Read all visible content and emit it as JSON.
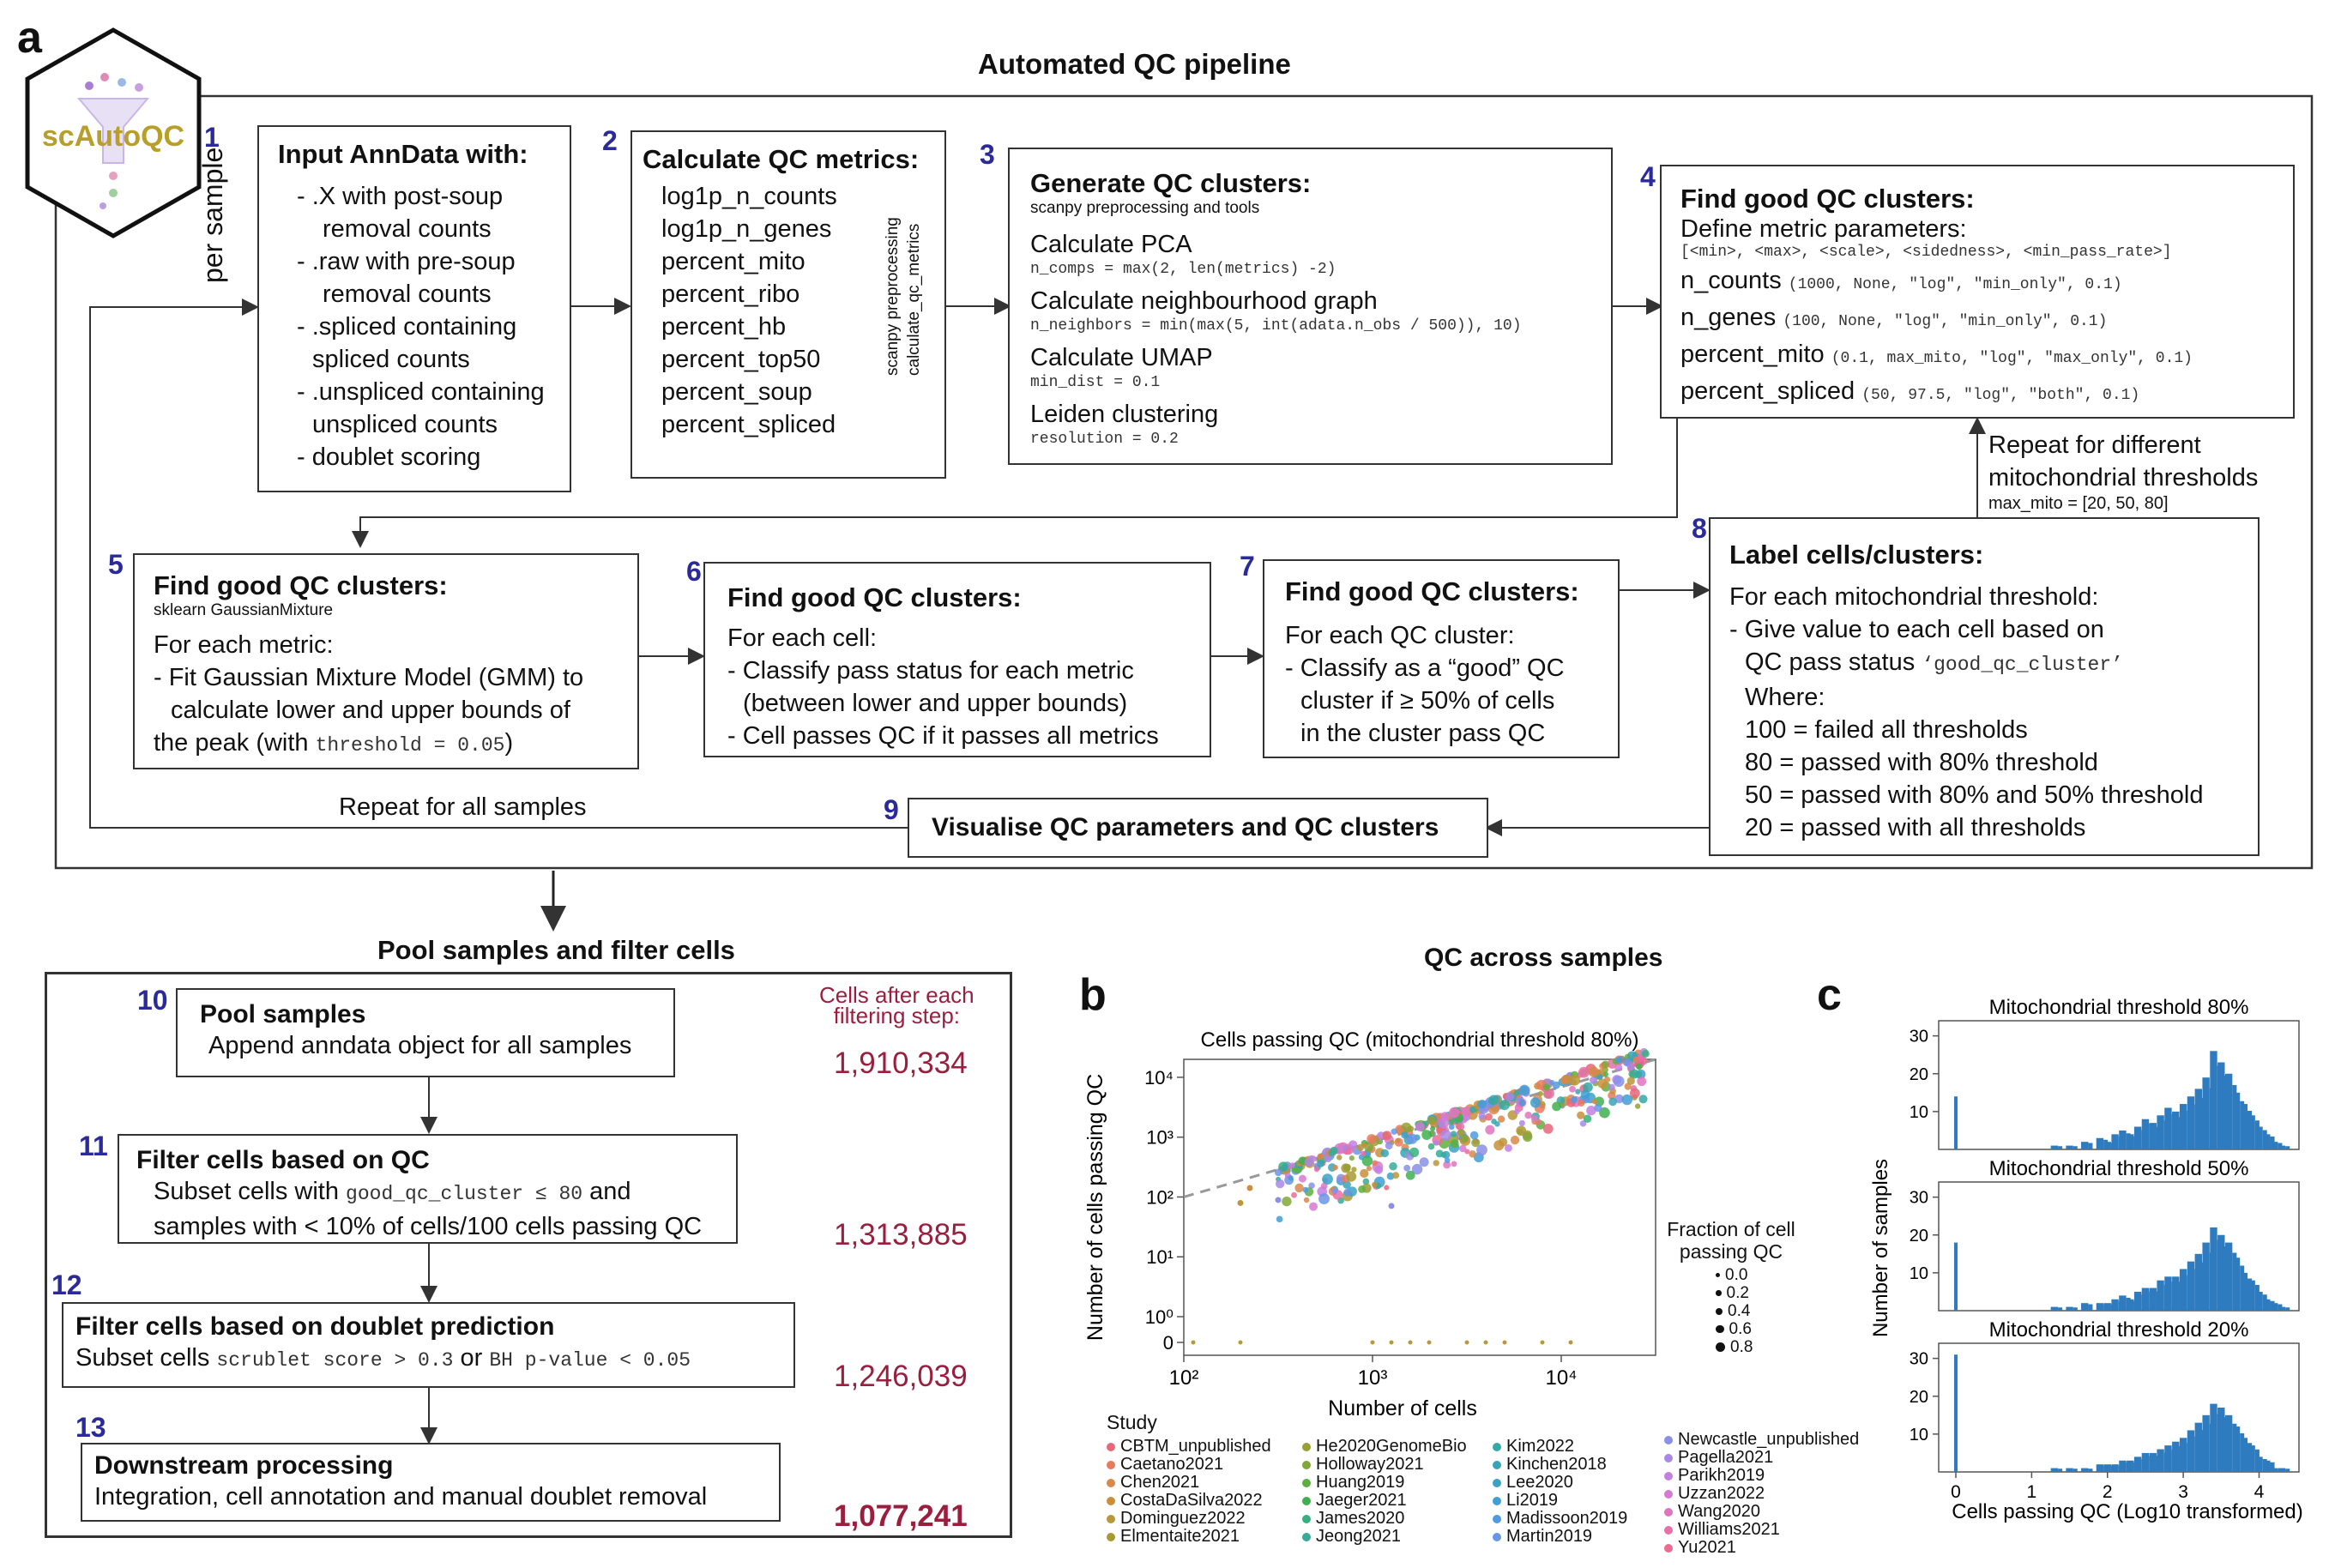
{
  "panel_a": {
    "letter": "a",
    "title": "Automated QC pipeline",
    "logo_text": "scAutoQC",
    "per_sample": "per sample",
    "repeat_all": "Repeat for all samples",
    "repeat_mito_1": "Repeat for different",
    "repeat_mito_2": "mitochondrial thresholds",
    "repeat_mito_3": "max_mito = [20, 50, 80]",
    "steps": {
      "s1": {
        "num": "1",
        "title": "Input AnnData with:",
        "lines": [
          "- .X with post-soup",
          "removal counts",
          "- .raw with pre-soup",
          "removal counts",
          "- .spliced containing",
          "spliced counts",
          "- .unspliced containing",
          "unspliced counts",
          "- doublet scoring"
        ]
      },
      "s2": {
        "num": "2",
        "title": "Calculate QC metrics:",
        "lines": [
          "log1p_n_counts",
          "log1p_n_genes",
          "percent_mito",
          "percent_ribo",
          "percent_hb",
          "percent_top50",
          "percent_soup",
          "percent_spliced"
        ],
        "side1": "scanpy preprocessing",
        "side2": "calculate_qc_metrics"
      },
      "s3": {
        "num": "3",
        "title": "Generate QC clusters:",
        "subtitle": "scanpy preprocessing and tools",
        "l1": "Calculate PCA",
        "m1": "n_comps = max(2, len(metrics) -2)",
        "l2": "Calculate neighbourhood graph",
        "m2": "n_neighbors = min(max(5, int(adata.n_obs / 500)), 10)",
        "l3": "Calculate UMAP",
        "m3": "min_dist = 0.1",
        "l4": "Leiden clustering",
        "m4": "resolution = 0.2"
      },
      "s4": {
        "num": "4",
        "title": "Find good QC clusters:",
        "l0": "Define metric parameters:",
        "m0": "[<min>, <max>, <scale>, <sidedness>, <min_pass_rate>]",
        "rows": [
          {
            "name": "n_counts",
            "mono": "(1000, None, \"log\", \"min_only\", 0.1)"
          },
          {
            "name": "n_genes",
            "mono": "(100, None, \"log\", \"min_only\", 0.1)"
          },
          {
            "name": "percent_mito",
            "mono": "(0.1, max_mito, \"log\", \"max_only\", 0.1)"
          },
          {
            "name": "percent_spliced",
            "mono": "(50, 97.5, \"log\", \"both\", 0.1)"
          }
        ]
      },
      "s5": {
        "num": "5",
        "title": "Find good QC clusters:",
        "subtitle": "sklearn GaussianMixture",
        "l1": "For each metric:",
        "l2": "- Fit Gaussian Mixture Model (GMM) to",
        "l3": "calculate lower and upper bounds of",
        "l4a": "the peak (with ",
        "l4m": "threshold = 0.05",
        "l4b": ")"
      },
      "s6": {
        "num": "6",
        "title": "Find good QC clusters:",
        "l1": "For each cell:",
        "l2": "- Classify pass status for each metric",
        "l3": "(between lower and upper bounds)",
        "l4": "- Cell passes QC if it passes all metrics"
      },
      "s7": {
        "num": "7",
        "title": "Find good QC clusters:",
        "l1": "For each QC cluster:",
        "l2": "- Classify as a “good” QC",
        "l3": "cluster if ≥ 50% of cells",
        "l4": "in the cluster pass QC"
      },
      "s8": {
        "num": "8",
        "title": "Label cells/clusters:",
        "l1": "For each mitochondrial threshold:",
        "l2": "- Give value to each cell based on",
        "l3a": "QC pass status ",
        "l3m": "‘good_qc_cluster’",
        "l4": "Where:",
        "l5": "100 = failed all thresholds",
        "l6": "80 = passed with 80% threshold",
        "l7": "50 = passed with 80% and 50% threshold",
        "l8": "20 = passed with all thresholds"
      },
      "s9": {
        "num": "9",
        "title": "Visualise QC parameters and QC clusters"
      }
    }
  },
  "pool": {
    "title": "Pool samples and filter cells",
    "cells_header_1": "Cells after each",
    "cells_header_2": "filtering step:",
    "s10": {
      "num": "10",
      "title": "Pool samples",
      "l1": "Append anndata object for all samples",
      "cells": "1,910,334"
    },
    "s11": {
      "num": "11",
      "title": "Filter cells based on QC",
      "l1a": "Subset cells with ",
      "l1m": "good_qc_cluster ≤ 80",
      "l1b": " and",
      "l2": "samples with < 10% of cells/100 cells passing QC",
      "cells": "1,313,885"
    },
    "s12": {
      "num": "12",
      "title": "Filter cells based on doublet prediction",
      "l1a": "Subset cells ",
      "l1m": "scrublet score > 0.3",
      "l1b": " or ",
      "l1m2": "BH p-value < 0.05",
      "cells": "1,246,039"
    },
    "s13": {
      "num": "13",
      "title": "Downstream processing",
      "l1": "Integration, cell annotation and manual doublet removal",
      "cells": "1,077,241"
    }
  },
  "panel_b": {
    "letter": "b",
    "header": "QC across samples",
    "chart_data": {
      "type": "scatter",
      "title": "Cells passing QC (mitochondrial threshold 80%)",
      "xlabel": "Number of cells",
      "ylabel": "Number of cells passing QC",
      "xscale": "log",
      "yscale": "symlog",
      "xticks": [
        "10²",
        "10³",
        "10⁴"
      ],
      "yticks": [
        "0",
        "10⁰",
        "10¹",
        "10²",
        "10³",
        "10⁴"
      ],
      "xlim_log10": [
        2.0,
        4.5
      ],
      "diagonal": "dashed y = x",
      "size_legend_title": "Fraction of cell passing QC",
      "size_legend": [
        "0.0",
        "0.2",
        "0.4",
        "0.6",
        "0.8"
      ],
      "legend_title": "Study",
      "studies": [
        {
          "name": "CBTM_unpublished",
          "color": "#e8677a"
        },
        {
          "name": "Caetano2021",
          "color": "#e87a5d"
        },
        {
          "name": "Chen2021",
          "color": "#d9874a"
        },
        {
          "name": "CostaDaSilva2022",
          "color": "#c98f3a"
        },
        {
          "name": "Dominguez2022",
          "color": "#b8983a"
        },
        {
          "name": "Elmentaite2021",
          "color": "#a89a33"
        },
        {
          "name": "He2020GenomeBio",
          "color": "#97a033"
        },
        {
          "name": "Holloway2021",
          "color": "#7fa838"
        },
        {
          "name": "Huang2019",
          "color": "#5faf40"
        },
        {
          "name": "Jaeger2021",
          "color": "#3fb050"
        },
        {
          "name": "James2020",
          "color": "#36b07e"
        },
        {
          "name": "Jeong2021",
          "color": "#35ab9a"
        },
        {
          "name": "Kim2022",
          "color": "#36a8a8"
        },
        {
          "name": "Kinchen2018",
          "color": "#37a5b5"
        },
        {
          "name": "Lee2020",
          "color": "#3aa2c5"
        },
        {
          "name": "Li2019",
          "color": "#3f9fd6"
        },
        {
          "name": "Madissoon2019",
          "color": "#4f9be0"
        },
        {
          "name": "Martin2019",
          "color": "#6a95e6"
        },
        {
          "name": "Newcastle_unpublished",
          "color": "#8a8fe8"
        },
        {
          "name": "Pagella2021",
          "color": "#a987e6"
        },
        {
          "name": "Parikh2019",
          "color": "#c47fe0"
        },
        {
          "name": "Uzzan2022",
          "color": "#d77ad2"
        },
        {
          "name": "Wang2020",
          "color": "#e274bf"
        },
        {
          "name": "Williams2021",
          "color": "#e86fa8"
        },
        {
          "name": "Yu2021",
          "color": "#eb6c92"
        }
      ],
      "zero_points_x_log10": [
        2.05,
        2.3,
        3.0,
        3.1,
        3.2,
        3.3,
        3.5,
        3.6,
        3.7,
        3.9,
        4.05
      ],
      "outlier_points": [
        {
          "x_log10": 2.3,
          "y_log10": 1.9,
          "color": "#b8983a"
        },
        {
          "x_log10": 2.5,
          "y_log10": 1.95,
          "color": "#8a8fe8"
        },
        {
          "x_log10": 2.8,
          "y_log10": 2.1,
          "color": "#8a8fe8"
        },
        {
          "x_log10": 3.1,
          "y_log10": 1.85,
          "color": "#8a8fe8"
        },
        {
          "x_log10": 2.35,
          "y_log10": 2.15,
          "color": "#c98f3a"
        }
      ]
    }
  },
  "panel_c": {
    "letter": "c",
    "chart_data": {
      "type": "bar",
      "xlabel": "Cells passing QC (Log10 transformed)",
      "ylabel": "Number of samples",
      "xticks": [
        0,
        1,
        2,
        3,
        4
      ],
      "color": "#2f7bbf",
      "panels": [
        {
          "title": "Mitochondrial threshold 80%",
          "yticks": [
            10,
            20,
            30
          ],
          "ylim": [
            0,
            34
          ],
          "zero_bar": 14,
          "bins_x": [
            1.3,
            1.5,
            1.7,
            1.9,
            2.0,
            2.1,
            2.2,
            2.3,
            2.4,
            2.5,
            2.6,
            2.7,
            2.8,
            2.9,
            3.0,
            3.1,
            3.2,
            3.3,
            3.4,
            3.5,
            3.6,
            3.7,
            3.8,
            3.9,
            4.0,
            4.1,
            4.2,
            4.3
          ],
          "bins_y": [
            1,
            1,
            2,
            3,
            2,
            4,
            5,
            4,
            6,
            8,
            7,
            9,
            11,
            10,
            12,
            14,
            16,
            19,
            26,
            23,
            20,
            15,
            12,
            9,
            6,
            4,
            2,
            1
          ]
        },
        {
          "title": "Mitochondrial threshold 50%",
          "yticks": [
            10,
            20,
            30
          ],
          "ylim": [
            0,
            34
          ],
          "zero_bar": 18,
          "bins_x": [
            1.3,
            1.5,
            1.7,
            1.9,
            2.0,
            2.1,
            2.2,
            2.3,
            2.4,
            2.5,
            2.6,
            2.7,
            2.8,
            2.9,
            3.0,
            3.1,
            3.2,
            3.3,
            3.4,
            3.5,
            3.6,
            3.7,
            3.8,
            3.9,
            4.0,
            4.1,
            4.2,
            4.3
          ],
          "bins_y": [
            1,
            1,
            2,
            2,
            2,
            3,
            4,
            3,
            5,
            6,
            6,
            8,
            9,
            9,
            11,
            13,
            15,
            18,
            22,
            20,
            18,
            14,
            10,
            8,
            5,
            3,
            2,
            1
          ]
        },
        {
          "title": "Mitochondrial threshold 20%",
          "yticks": [
            10,
            20,
            30
          ],
          "ylim": [
            0,
            34
          ],
          "zero_bar": 31,
          "bins_x": [
            1.3,
            1.5,
            1.7,
            1.9,
            2.0,
            2.1,
            2.2,
            2.3,
            2.4,
            2.5,
            2.6,
            2.7,
            2.8,
            2.9,
            3.0,
            3.1,
            3.2,
            3.3,
            3.4,
            3.5,
            3.6,
            3.7,
            3.8,
            3.9,
            4.0,
            4.1,
            4.2,
            4.3
          ],
          "bins_y": [
            1,
            1,
            1,
            2,
            2,
            2,
            3,
            3,
            4,
            5,
            5,
            6,
            7,
            8,
            9,
            11,
            13,
            15,
            18,
            17,
            15,
            12,
            9,
            7,
            4,
            3,
            1,
            1
          ]
        }
      ]
    }
  }
}
